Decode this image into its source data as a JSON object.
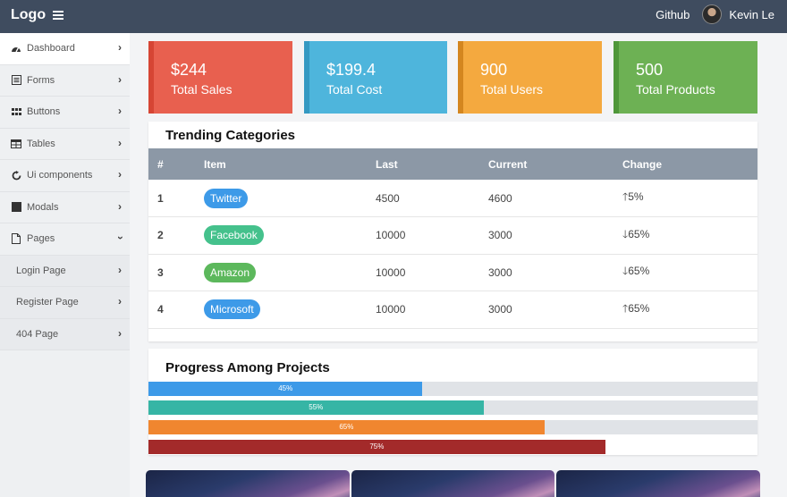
{
  "topbar": {
    "logo": "Logo",
    "github_label": "Github",
    "user_name": "Kevin Le"
  },
  "sidebar": {
    "items": [
      {
        "label": "Dashboard",
        "icon": "dashboard-icon",
        "expanded": false
      },
      {
        "label": "Forms",
        "icon": "form-icon",
        "expanded": false
      },
      {
        "label": "Buttons",
        "icon": "grid-dots-icon",
        "expanded": false
      },
      {
        "label": "Tables",
        "icon": "table-icon",
        "expanded": false
      },
      {
        "label": "Ui components",
        "icon": "refresh-icon",
        "expanded": false
      },
      {
        "label": "Modals",
        "icon": "square-icon",
        "expanded": false
      },
      {
        "label": "Pages",
        "icon": "file-icon",
        "expanded": true
      }
    ],
    "subitems": [
      {
        "label": "Login Page"
      },
      {
        "label": "Register Page"
      },
      {
        "label": "404 Page"
      }
    ]
  },
  "stats": [
    {
      "value": "$244",
      "label": "Total Sales",
      "color": "#e8604f",
      "stripe": "#d64534"
    },
    {
      "value": "$199.4",
      "label": "Total Cost",
      "color": "#4eb5dc",
      "stripe": "#3499c2"
    },
    {
      "value": "900",
      "label": "Total Users",
      "color": "#f4a93f",
      "stripe": "#d4861f"
    },
    {
      "value": "500",
      "label": "Total Products",
      "color": "#6db154",
      "stripe": "#4f973a"
    }
  ],
  "trending": {
    "title": "Trending Categories",
    "headers": [
      "#",
      "Item",
      "Last",
      "Current",
      "Change"
    ],
    "rows": [
      {
        "num": "1",
        "item": "Twitter",
        "item_color": "#3d9ae8",
        "last": "4500",
        "current": "4600",
        "change": "5%",
        "direction": "up"
      },
      {
        "num": "2",
        "item": "Facebook",
        "item_color": "#45c18c",
        "last": "10000",
        "current": "3000",
        "change": "65%",
        "direction": "down"
      },
      {
        "num": "3",
        "item": "Amazon",
        "item_color": "#5cb85c",
        "last": "10000",
        "current": "3000",
        "change": "65%",
        "direction": "down"
      },
      {
        "num": "4",
        "item": "Microsoft",
        "item_color": "#3d9ae8",
        "last": "10000",
        "current": "3000",
        "change": "65%",
        "direction": "up"
      }
    ]
  },
  "progress": {
    "title": "Progress Among Projects",
    "bars": [
      {
        "value": 45,
        "label": "45%",
        "color": "#3d9ae8"
      },
      {
        "value": 55,
        "label": "55%",
        "color": "#36b5a5"
      },
      {
        "value": 65,
        "label": "65%",
        "color": "#f0862f"
      },
      {
        "value": 75,
        "label": "75%",
        "color": "#a32a2a"
      }
    ]
  }
}
